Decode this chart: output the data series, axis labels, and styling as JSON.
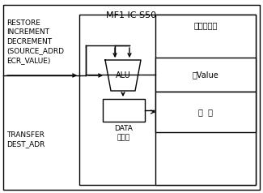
{
  "title": "MF1 IC S50",
  "memory_label": "芯片存储器",
  "source_value_label": "源Value",
  "result_label": "结  果",
  "left_text_top": "RESTORE\nINCREMENT\nDECREMENT\n(SOURCE_ADRD\nECR_VALUE)",
  "left_text_bottom": "TRANSFER\nDEST_ADR",
  "alu_label": "ALU",
  "data_reg_label": "DATA\n寄存器",
  "bg_color": "#ffffff",
  "line_color": "#000000",
  "font_size": 7
}
